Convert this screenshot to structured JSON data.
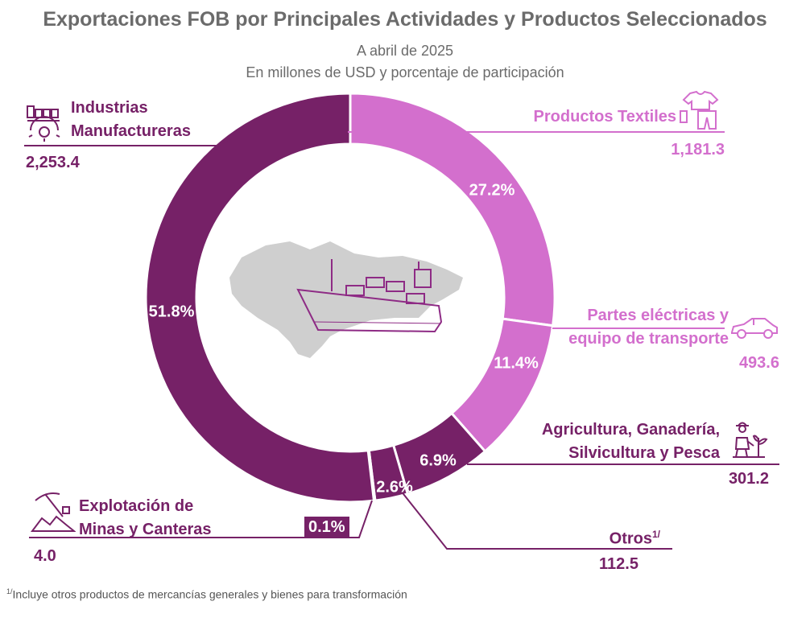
{
  "title": "Exportaciones FOB por Principales Actividades y Productos Seleccionados",
  "subtitle1": "A abril de 2025",
  "subtitle2": "En millones de USD y porcentaje de participación",
  "footnote": {
    "mark": "1/",
    "text": "Incluye otros productos de mercancías generales y bienes para transformación"
  },
  "chart_data": {
    "type": "pie",
    "variant": "donut",
    "units": "millones de USD",
    "slices": [
      {
        "label_lines": [
          "Productos Textiles"
        ],
        "value": 1181.3,
        "value_label": "1,181.3",
        "percent": 27.2,
        "percent_label": "27.2%",
        "color": "#d36fcd"
      },
      {
        "label_lines": [
          "Partes eléctricas y",
          "equipo de transporte"
        ],
        "value": 493.6,
        "value_label": "493.6",
        "percent": 11.4,
        "percent_label": "11.4%",
        "color": "#d36fcd"
      },
      {
        "label_lines": [
          "Agricultura, Ganadería,",
          "Silvicultura y Pesca"
        ],
        "value": 301.2,
        "value_label": "301.2",
        "percent": 6.9,
        "percent_label": "6.9%",
        "color": "#762167"
      },
      {
        "label_lines": [
          "Otros"
        ],
        "label_sup": "1/",
        "value": 112.5,
        "value_label": "112.5",
        "percent": 2.6,
        "percent_label": "2.6%",
        "color": "#762167"
      },
      {
        "label_lines": [
          "Explotación de",
          "Minas y Canteras"
        ],
        "value": 4.0,
        "value_label": "4.0",
        "percent": 0.1,
        "percent_label": "0.1%",
        "color": "#762167"
      },
      {
        "label_lines": [
          "Industrias",
          "Manufactureras"
        ],
        "value": 2253.4,
        "value_label": "2,253.4",
        "percent": 51.8,
        "percent_label": "51.8%",
        "color": "#762167"
      }
    ]
  },
  "icons": {
    "textiles": "clothing-icon",
    "transport": "car-icon",
    "agriculture": "farmer-icon",
    "mining": "pickaxe-icon",
    "manufacturing": "factory-icon",
    "center": "cargo-ship-map-icon"
  }
}
